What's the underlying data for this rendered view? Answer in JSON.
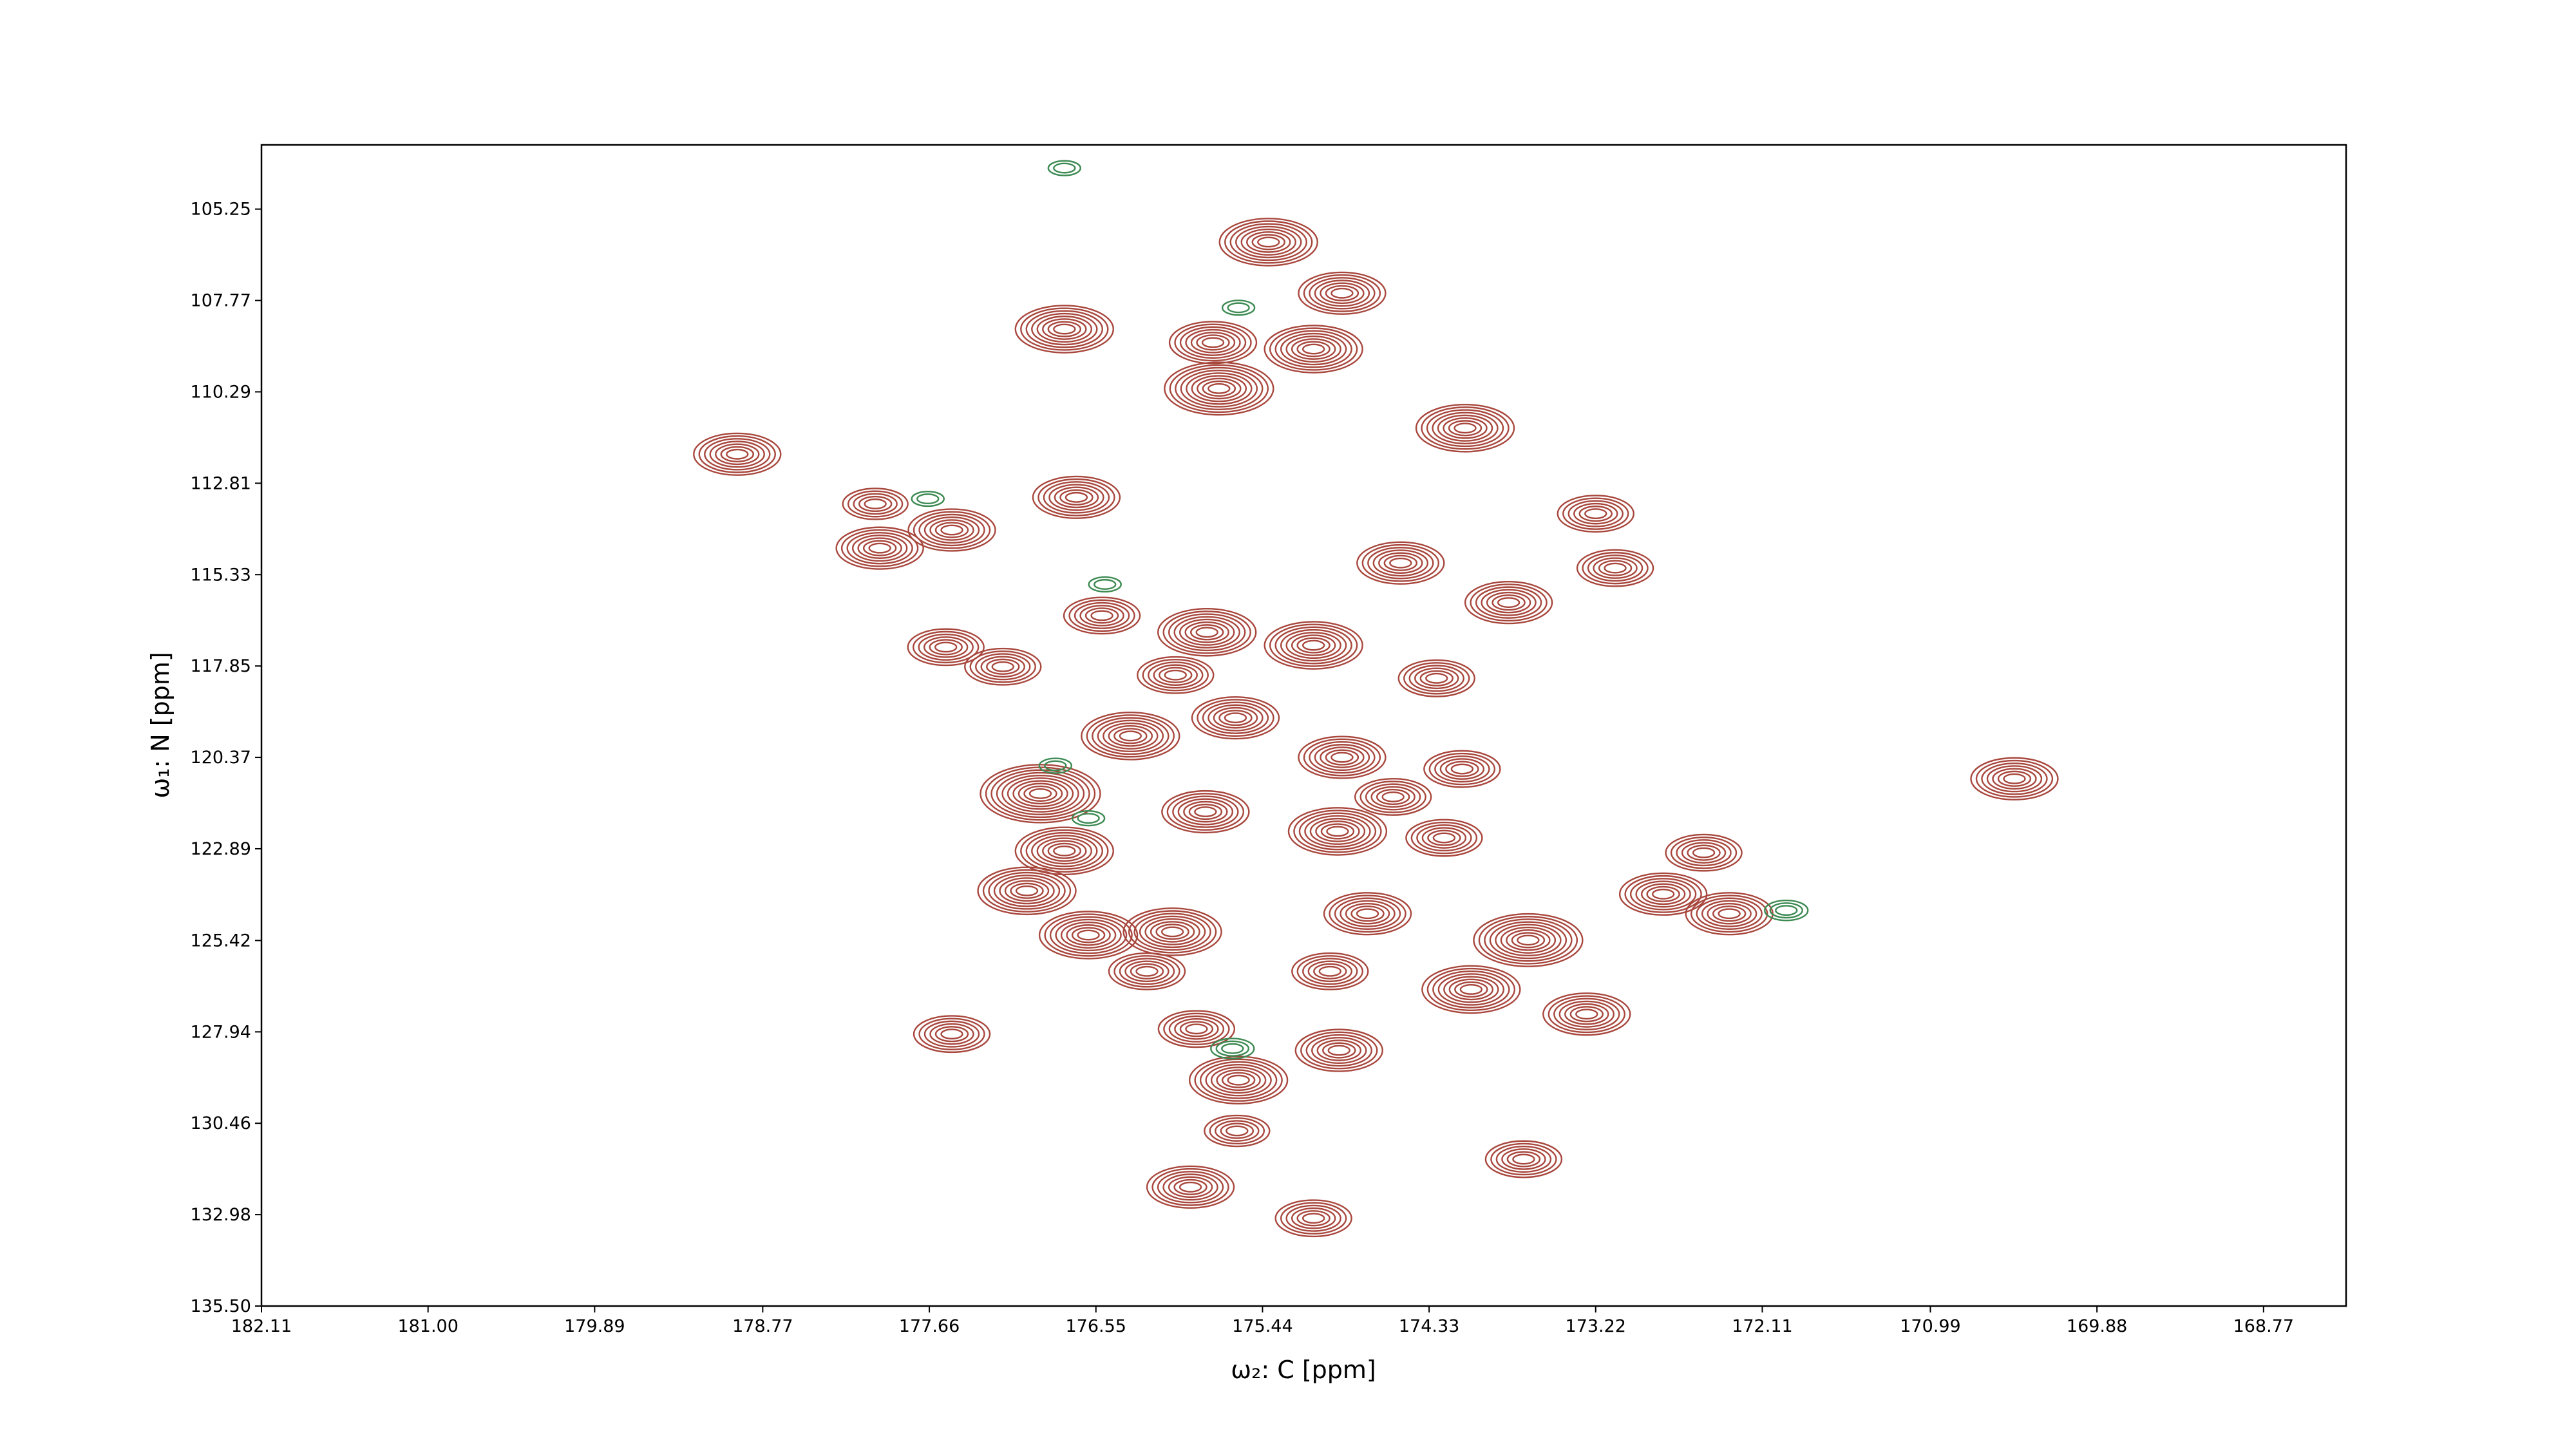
{
  "chart_data": {
    "type": "contour",
    "xlabel": "ω₂: C [ppm]",
    "ylabel": "ω₁: N [ppm]",
    "xlim": [
      182.11,
      168.22
    ],
    "ylim": [
      103.48,
      135.5
    ],
    "xticks": [
      182.11,
      {
        "value": 181,
        "label": "181.00"
      },
      179.89,
      178.77,
      177.66,
      176.55,
      175.44,
      174.33,
      173.22,
      172.11,
      170.99,
      169.88,
      168.77
    ],
    "yticks": [
      105.25,
      107.77,
      110.29,
      112.81,
      115.33,
      117.85,
      120.37,
      122.89,
      125.42,
      127.94,
      130.46,
      {
        "value": 132.98,
        "label": "132.98"
      },
      {
        "value": 135.5,
        "label": "135.50"
      }
    ],
    "series": [
      {
        "color": "#a8473d",
        "x": [
          175.4,
          174.91,
          176.76,
          175.77,
          175.1,
          175.73,
          174.09,
          178.94,
          176.68,
          178.02,
          177.51,
          177.99,
          173.22,
          174.52,
          173.09,
          173.8,
          176.51,
          175.81,
          175.1,
          177.55,
          177.17,
          176.02,
          174.28,
          175.62,
          176.32,
          174.91,
          174.11,
          176.92,
          170.43,
          175.82,
          174.57,
          174.94,
          174.23,
          176.76,
          172.5,
          177.01,
          172.77,
          174.74,
          172.33,
          176.04,
          173.67,
          176.6,
          176.21,
          174.99,
          174.05,
          173.28,
          177.51,
          175.88,
          174.93,
          175.6,
          175.61,
          175.92,
          173.7,
          175.1
        ],
        "y": [
          106.16,
          107.57,
          108.56,
          108.93,
          109.11,
          110.2,
          111.29,
          112.01,
          113.2,
          113.38,
          114.1,
          114.6,
          113.65,
          115.01,
          115.15,
          116.1,
          116.46,
          116.92,
          117.28,
          117.33,
          117.87,
          118.1,
          118.19,
          119.28,
          119.78,
          120.37,
          120.69,
          121.37,
          120.96,
          121.87,
          121.46,
          122.41,
          122.59,
          122.95,
          123.0,
          124.05,
          124.14,
          124.68,
          124.68,
          125.18,
          125.41,
          125.27,
          126.27,
          126.27,
          126.77,
          127.45,
          128.0,
          127.86,
          128.45,
          129.27,
          130.67,
          132.22,
          131.45,
          133.08
        ],
        "levels": [
          8,
          7,
          8,
          7,
          8,
          9,
          8,
          7,
          7,
          5,
          7,
          7,
          6,
          7,
          6,
          7,
          6,
          8,
          8,
          6,
          6,
          6,
          6,
          7,
          8,
          7,
          6,
          10,
          7,
          7,
          6,
          8,
          6,
          8,
          6,
          8,
          7,
          7,
          7,
          8,
          9,
          8,
          6,
          6,
          8,
          7,
          6,
          6,
          7,
          8,
          5,
          7,
          6,
          6
        ]
      },
      {
        "color": "#3d8a52",
        "x": [
          176.76,
          176.49,
          176.82,
          176.6,
          175.64,
          171.95,
          175.6,
          177.67
        ],
        "y": [
          104.12,
          115.6,
          120.6,
          122.05,
          128.4,
          124.59,
          107.97,
          113.24
        ],
        "levels": [
          2,
          2,
          2,
          2,
          3,
          3,
          2,
          2
        ]
      }
    ]
  }
}
